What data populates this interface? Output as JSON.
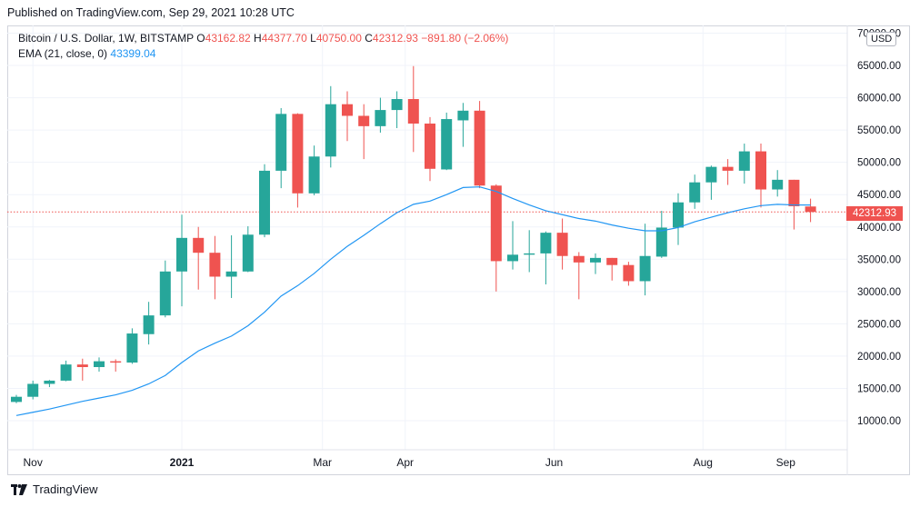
{
  "header": {
    "published": "Published on TradingView.com, Sep 29, 2021 10:28 UTC"
  },
  "legend": {
    "symbol": "Bitcoin / U.S. Dollar, 1W, BITSTAMP",
    "o_label": "O",
    "o": "43162.82",
    "h_label": "H",
    "h": "44377.70",
    "l_label": "L",
    "l": "40750.00",
    "c_label": "C",
    "c": "42312.93",
    "change": "−891.80 (−2.06%)",
    "ema_label": "EMA (21, close, 0)",
    "ema_value": "43399.04"
  },
  "currency_button": "USD",
  "last_price_tag": "42312.93",
  "footer": {
    "brand": "TradingView"
  },
  "colors": {
    "up": "#26a69a",
    "down": "#ef5350",
    "ema": "#2196f3",
    "grid": "#f0f3fa",
    "price_line": "#ef5350"
  },
  "chart_data": {
    "type": "candlestick",
    "interval": "1W",
    "ylim": [
      5000,
      70000
    ],
    "y_ticks": [
      10000,
      15000,
      20000,
      25000,
      30000,
      35000,
      40000,
      45000,
      50000,
      55000,
      60000,
      65000,
      70000
    ],
    "y_tick_labels": [
      "10000.00",
      "15000.00",
      "20000.00",
      "25000.00",
      "30000.00",
      "35000.00",
      "40000.00",
      "45000.00",
      "50000.00",
      "55000.00",
      "60000.00",
      "65000.00",
      "70000.00"
    ],
    "x_tick_labels": [
      {
        "label": "Nov",
        "week": 1,
        "bold": false
      },
      {
        "label": "2021",
        "week": 10,
        "bold": true
      },
      {
        "label": "Mar",
        "week": 18.5,
        "bold": false
      },
      {
        "label": "Apr",
        "week": 23.5,
        "bold": false
      },
      {
        "label": "Jun",
        "week": 32.5,
        "bold": false
      },
      {
        "label": "Aug",
        "week": 41.5,
        "bold": false
      },
      {
        "label": "Sep",
        "week": 46.5,
        "bold": false
      }
    ],
    "last_price": 42312.93,
    "candles": [
      {
        "o": 12900,
        "h": 14000,
        "l": 12700,
        "c": 13700
      },
      {
        "o": 13700,
        "h": 16200,
        "l": 13300,
        "c": 15700
      },
      {
        "o": 15700,
        "h": 16300,
        "l": 15200,
        "c": 16200
      },
      {
        "o": 16200,
        "h": 19300,
        "l": 16100,
        "c": 18700
      },
      {
        "o": 18700,
        "h": 19600,
        "l": 16200,
        "c": 18300
      },
      {
        "o": 18300,
        "h": 19800,
        "l": 17600,
        "c": 19200
      },
      {
        "o": 19200,
        "h": 19500,
        "l": 17600,
        "c": 19000
      },
      {
        "o": 19000,
        "h": 24300,
        "l": 18800,
        "c": 23500
      },
      {
        "o": 23400,
        "h": 28400,
        "l": 21800,
        "c": 26300
      },
      {
        "o": 26300,
        "h": 34800,
        "l": 26000,
        "c": 33100
      },
      {
        "o": 33100,
        "h": 41900,
        "l": 27700,
        "c": 38300
      },
      {
        "o": 38300,
        "h": 40000,
        "l": 30300,
        "c": 36000
      },
      {
        "o": 36000,
        "h": 38600,
        "l": 28800,
        "c": 32300
      },
      {
        "o": 32300,
        "h": 38700,
        "l": 29000,
        "c": 33100
      },
      {
        "o": 33100,
        "h": 40100,
        "l": 33000,
        "c": 38800
      },
      {
        "o": 38800,
        "h": 49700,
        "l": 38400,
        "c": 48700
      },
      {
        "o": 48700,
        "h": 58400,
        "l": 46000,
        "c": 57500
      },
      {
        "o": 57500,
        "h": 57600,
        "l": 43000,
        "c": 45200
      },
      {
        "o": 45200,
        "h": 52600,
        "l": 44900,
        "c": 50900
      },
      {
        "o": 50900,
        "h": 61800,
        "l": 49200,
        "c": 59000
      },
      {
        "o": 59000,
        "h": 61000,
        "l": 53300,
        "c": 57200
      },
      {
        "o": 57200,
        "h": 59000,
        "l": 50500,
        "c": 55600
      },
      {
        "o": 55600,
        "h": 60000,
        "l": 54600,
        "c": 58100
      },
      {
        "o": 58100,
        "h": 61000,
        "l": 55300,
        "c": 59800
      },
      {
        "o": 59800,
        "h": 64900,
        "l": 51600,
        "c": 56000
      },
      {
        "o": 56000,
        "h": 57000,
        "l": 47100,
        "c": 49000
      },
      {
        "o": 48900,
        "h": 57700,
        "l": 48800,
        "c": 56700
      },
      {
        "o": 56500,
        "h": 59200,
        "l": 52400,
        "c": 58000
      },
      {
        "o": 58000,
        "h": 59500,
        "l": 46000,
        "c": 46400
      },
      {
        "o": 46400,
        "h": 46600,
        "l": 30000,
        "c": 34700
      },
      {
        "o": 34700,
        "h": 40900,
        "l": 33400,
        "c": 35700
      },
      {
        "o": 35700,
        "h": 39500,
        "l": 33000,
        "c": 35900
      },
      {
        "o": 35900,
        "h": 39300,
        "l": 31100,
        "c": 39100
      },
      {
        "o": 39100,
        "h": 41300,
        "l": 33400,
        "c": 35500
      },
      {
        "o": 35500,
        "h": 36100,
        "l": 28800,
        "c": 34500
      },
      {
        "o": 34500,
        "h": 35900,
        "l": 32700,
        "c": 35200
      },
      {
        "o": 35200,
        "h": 35200,
        "l": 31700,
        "c": 34100
      },
      {
        "o": 34100,
        "h": 34600,
        "l": 30900,
        "c": 31600
      },
      {
        "o": 31600,
        "h": 40500,
        "l": 29400,
        "c": 35500
      },
      {
        "o": 35400,
        "h": 42500,
        "l": 35200,
        "c": 39900
      },
      {
        "o": 39900,
        "h": 45200,
        "l": 37200,
        "c": 43800
      },
      {
        "o": 43800,
        "h": 48100,
        "l": 42800,
        "c": 46900
      },
      {
        "o": 46900,
        "h": 49500,
        "l": 44200,
        "c": 49300
      },
      {
        "o": 49300,
        "h": 50500,
        "l": 46500,
        "c": 48700
      },
      {
        "o": 48700,
        "h": 52900,
        "l": 46700,
        "c": 51700
      },
      {
        "o": 51700,
        "h": 52900,
        "l": 43000,
        "c": 45800
      },
      {
        "o": 45800,
        "h": 48800,
        "l": 44700,
        "c": 47300
      },
      {
        "o": 47300,
        "h": 47300,
        "l": 39600,
        "c": 43200
      },
      {
        "o": 43163,
        "h": 44378,
        "l": 40750,
        "c": 42313
      }
    ],
    "ema21": [
      10800,
      11300,
      11800,
      12400,
      13000,
      13500,
      14000,
      14700,
      15700,
      17000,
      19000,
      20800,
      22000,
      23100,
      24700,
      26800,
      29300,
      30900,
      32800,
      35000,
      37000,
      38700,
      40500,
      42200,
      43500,
      44000,
      45000,
      46100,
      46200,
      45500,
      44400,
      43400,
      42500,
      41900,
      41300,
      40900,
      40300,
      39800,
      39400,
      39400,
      39900,
      40800,
      41500,
      42200,
      42800,
      43300,
      43500,
      43400,
      43399
    ]
  }
}
